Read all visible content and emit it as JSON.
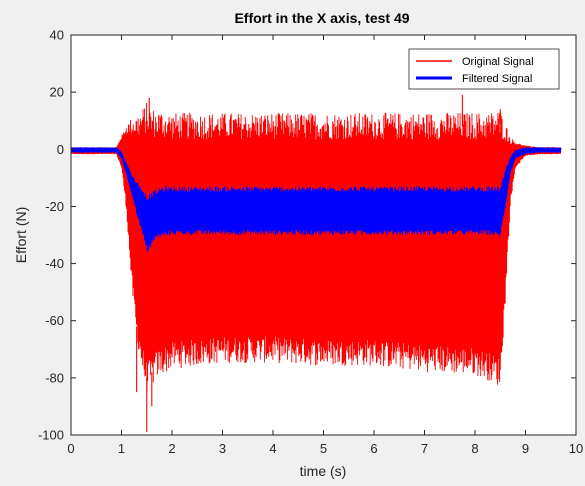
{
  "chart_data": {
    "type": "line",
    "title": "Effort in the X axis, test 49",
    "xlabel": "time (s)",
    "ylabel": "Effort (N)",
    "xlim": [
      0,
      10
    ],
    "ylim": [
      -100,
      40
    ],
    "xticks": [
      0,
      1,
      2,
      3,
      4,
      5,
      6,
      7,
      8,
      9,
      10
    ],
    "yticks": [
      -100,
      -80,
      -60,
      -40,
      -20,
      0,
      20,
      40
    ],
    "grid": false,
    "legend_position": "top-right",
    "series": [
      {
        "name": "Original Signal",
        "color": "#ff0000",
        "envelope": {
          "x": [
            0.0,
            0.9,
            1.0,
            1.1,
            1.2,
            1.3,
            1.4,
            1.5,
            1.6,
            1.7,
            2.0,
            3.0,
            4.0,
            5.0,
            6.0,
            7.0,
            8.0,
            8.3,
            8.5,
            8.6,
            8.7,
            8.8,
            9.0,
            9.3,
            9.7
          ],
          "upper": [
            0.5,
            0.5,
            4,
            7,
            8,
            8,
            9,
            11,
            9,
            9,
            8,
            8,
            8,
            8,
            8,
            8,
            8,
            8,
            9,
            6,
            3,
            2,
            1,
            0.5,
            0.5
          ],
          "lower": [
            -1.5,
            -1.5,
            -6,
            -20,
            -45,
            -62,
            -72,
            -80,
            -78,
            -75,
            -72,
            -70,
            -70,
            -71,
            -71,
            -73,
            -74,
            -76,
            -78,
            -50,
            -18,
            -6,
            -2,
            -1.5,
            -1.5
          ]
        },
        "peaks": [
          {
            "x": 1.55,
            "y": 18
          },
          {
            "x": 7.75,
            "y": 19
          },
          {
            "x": 8.5,
            "y": 14
          },
          {
            "x": 1.5,
            "y": -99
          },
          {
            "x": 1.6,
            "y": -90
          },
          {
            "x": 1.3,
            "y": -85
          }
        ]
      },
      {
        "name": "Filtered Signal",
        "color": "#0000ff",
        "envelope": {
          "x": [
            0.0,
            0.9,
            1.0,
            1.1,
            1.2,
            1.3,
            1.4,
            1.5,
            1.6,
            1.7,
            1.8,
            2.0,
            3.0,
            4.0,
            5.0,
            6.0,
            7.0,
            8.0,
            8.3,
            8.5,
            8.6,
            8.7,
            8.8,
            9.0,
            9.3,
            9.7
          ],
          "upper": [
            0.5,
            0.5,
            -1,
            -5,
            -9,
            -12,
            -14,
            -17,
            -16,
            -15,
            -14,
            -14,
            -14,
            -14,
            -14,
            -14,
            -14,
            -14,
            -14,
            -14,
            -8,
            -3,
            -0.5,
            0.5,
            0.5,
            0.5
          ],
          "lower": [
            -1,
            -1,
            -3,
            -9,
            -15,
            -22,
            -28,
            -35,
            -33,
            -30,
            -30,
            -29,
            -29,
            -29,
            -29,
            -29,
            -29,
            -29,
            -29,
            -30,
            -20,
            -8,
            -3,
            -1.5,
            -1,
            -1
          ]
        }
      }
    ]
  }
}
